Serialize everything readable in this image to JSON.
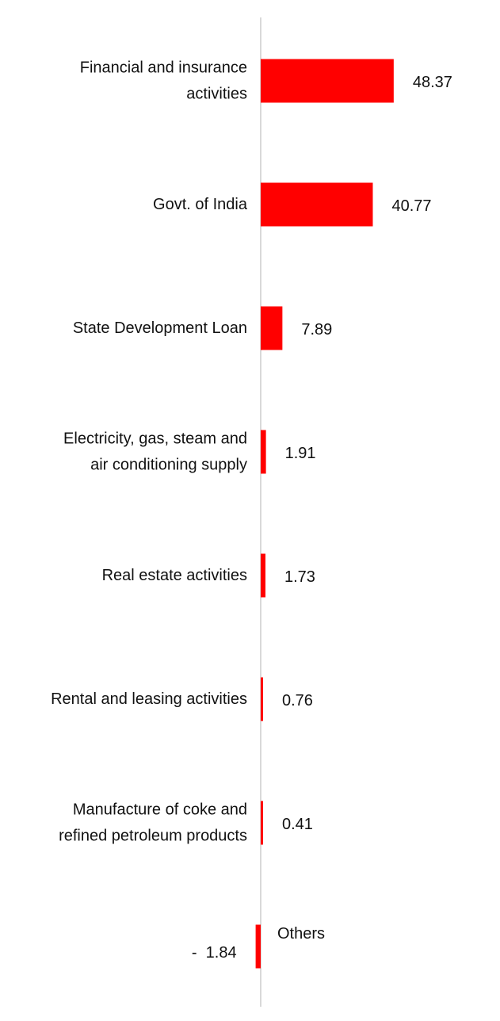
{
  "chart_data": {
    "type": "bar",
    "orientation": "horizontal",
    "categories": [
      [
        "Financial and insurance",
        "activities"
      ],
      [
        "Govt. of India"
      ],
      [
        "State Development Loan"
      ],
      [
        "Electricity, gas, steam and",
        "air conditioning supply"
      ],
      [
        "Real estate activities"
      ],
      [
        "Rental and leasing activities"
      ],
      [
        "Manufacture of coke and",
        "refined petroleum products"
      ],
      [
        "Others"
      ]
    ],
    "values": [
      48.37,
      40.77,
      7.89,
      1.91,
      1.73,
      0.76,
      0.41,
      -1.84
    ],
    "value_labels": [
      "48.37",
      "40.77",
      "7.89",
      "1.91",
      "1.73",
      "0.76",
      "0.41",
      "-  1.84"
    ],
    "bar_color": "#ff0000",
    "axis_color": "#d9d9d9",
    "title": "",
    "xlabel": "",
    "ylabel": "",
    "grid": false,
    "legend": "none"
  }
}
